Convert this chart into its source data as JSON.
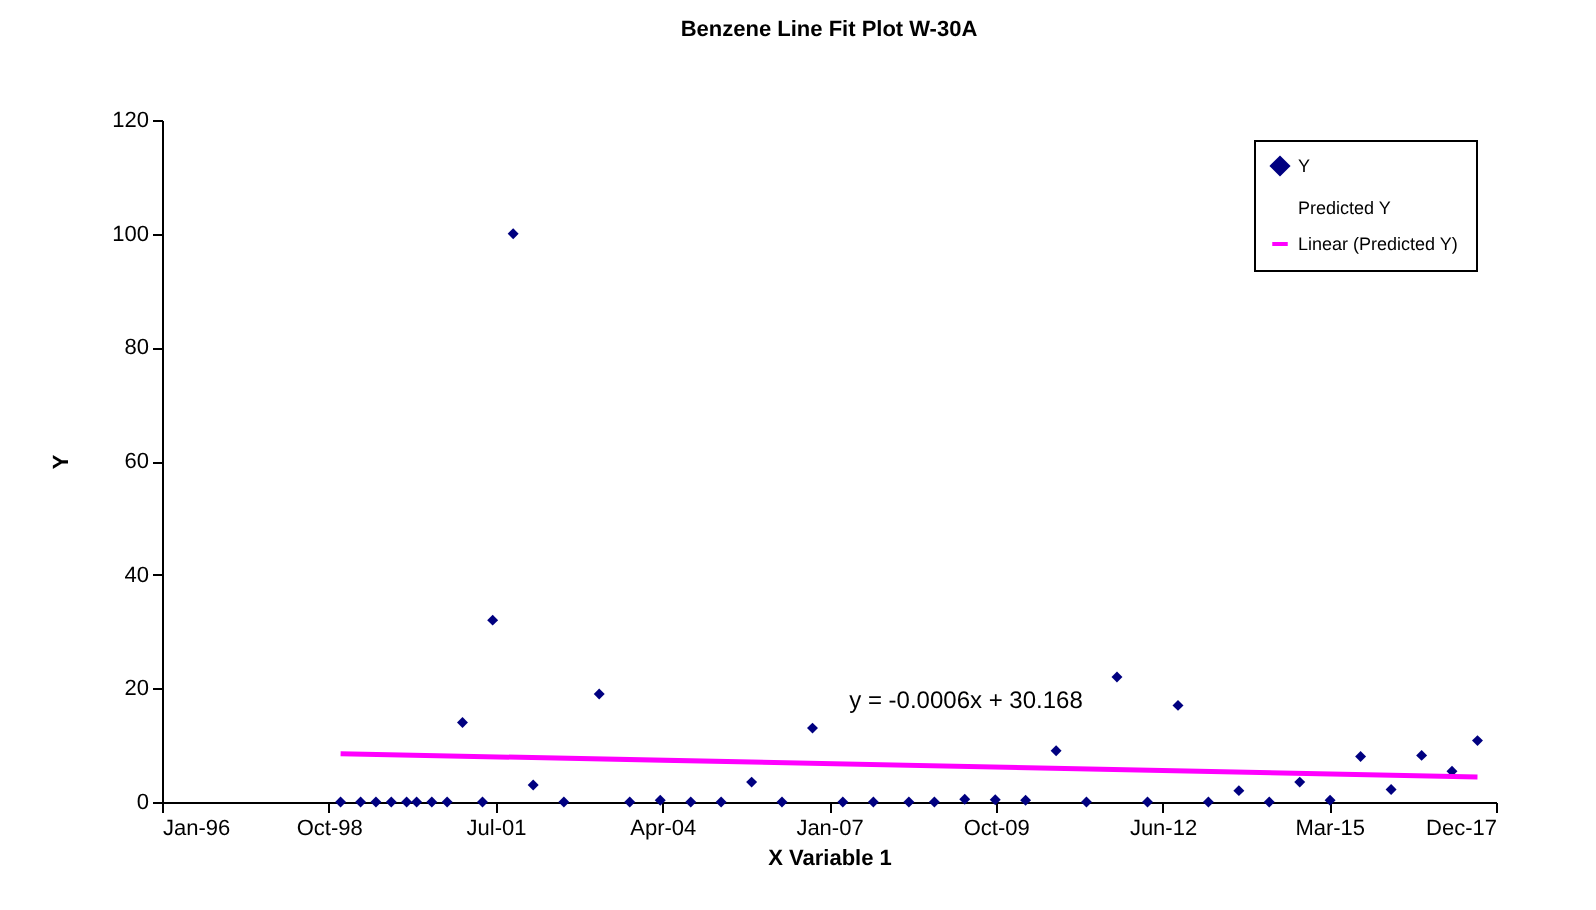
{
  "chart_data": {
    "type": "scatter",
    "title": "Benzene Line Fit Plot W-30A",
    "xlabel": "X Variable 1",
    "ylabel": "Y",
    "xlim": [
      "1996-01-26",
      "2017-12-21"
    ],
    "xticks": [
      {
        "value": "1996-01-26",
        "label": "Jan-96"
      },
      {
        "value": "1998-10-22",
        "label": "Oct-98"
      },
      {
        "value": "2001-07-18",
        "label": "Jul-01"
      },
      {
        "value": "2004-04-13",
        "label": "Apr-04"
      },
      {
        "value": "2007-01-08",
        "label": "Jan-07"
      },
      {
        "value": "2009-10-04",
        "label": "Oct-09"
      },
      {
        "value": "2012-06-30",
        "label": "Jun-12"
      },
      {
        "value": "2015-03-27",
        "label": "Mar-15"
      },
      {
        "value": "2017-12-21",
        "label": "Dec-17"
      }
    ],
    "ylim": [
      0,
      120
    ],
    "yticks": [
      0,
      20,
      40,
      60,
      80,
      100,
      120
    ],
    "grid": false,
    "legend": "top right",
    "series": [
      {
        "name": "Y",
        "marker": "diamond",
        "color": "#000080",
        "x": [
          "1999-01",
          "1999-05",
          "1999-08",
          "1999-11",
          "2000-02",
          "2000-04",
          "2000-07",
          "2000-10",
          "2001-01",
          "2001-05",
          "2001-07",
          "2001-11",
          "2002-03",
          "2002-09",
          "2003-04",
          "2003-10",
          "2004-04",
          "2004-10",
          "2005-04",
          "2005-10",
          "2006-04",
          "2006-10",
          "2007-04",
          "2007-10",
          "2008-05",
          "2008-10",
          "2009-04",
          "2009-10",
          "2010-04",
          "2010-10",
          "2011-04",
          "2011-10",
          "2012-04",
          "2012-10",
          "2013-04",
          "2013-10",
          "2014-04",
          "2014-10",
          "2015-04",
          "2015-10",
          "2016-04",
          "2016-10",
          "2017-04",
          "2017-09"
        ],
        "values": [
          0,
          0,
          0,
          0,
          0,
          0,
          0,
          0,
          14,
          0,
          32,
          100,
          3,
          0,
          19,
          0,
          0.3,
          0,
          0,
          3.5,
          0,
          13,
          0,
          0,
          0,
          0,
          0.5,
          0.4,
          0.3,
          9,
          0,
          22,
          0,
          17,
          0,
          2,
          0,
          3.5,
          0.3,
          8,
          2.2,
          8.2,
          5.4,
          10.8
        ]
      },
      {
        "name": "Predicted Y",
        "marker": "none"
      },
      {
        "name": "Linear (Predicted Y)",
        "type": "line",
        "line_style": "solid",
        "color": "#ff00ff",
        "x": [
          "1999-01",
          "2017-09"
        ],
        "values": [
          8.5,
          4.4
        ]
      }
    ],
    "annotations": [
      "y = -0.0006x + 30.168"
    ]
  }
}
